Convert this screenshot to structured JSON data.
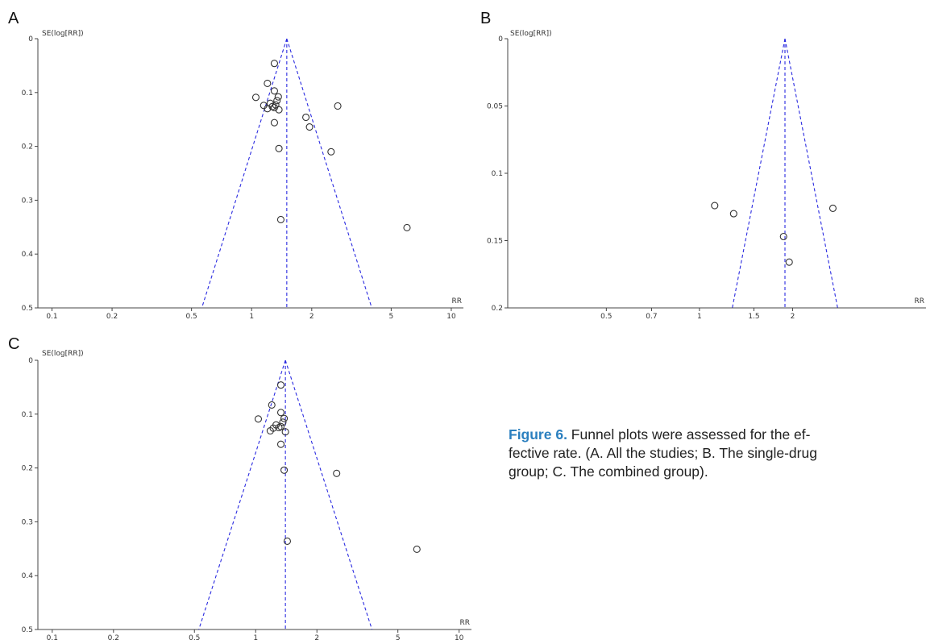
{
  "panels": [
    {
      "letter": "A",
      "chart_data": {
        "type": "scatter",
        "subtype": "funnel-plot",
        "xlabel": "RR",
        "ylabel": "SE(log[RR])",
        "x_scale": "log",
        "xlim": [
          0.085,
          11.5
        ],
        "ylim": [
          0,
          0.5
        ],
        "y_inverted": true,
        "x_ticks": [
          0.1,
          0.2,
          0.5,
          1,
          2,
          5,
          10
        ],
        "x_tick_labels": [
          "0.1",
          "0.2",
          "0.5",
          "1",
          "2",
          "5",
          "10"
        ],
        "y_ticks": [
          0,
          0.1,
          0.2,
          0.3,
          0.4,
          0.5
        ],
        "y_tick_labels": [
          "0",
          "0.1",
          "0.2",
          "0.3",
          "0.4",
          "0.5"
        ],
        "pooled_rr": 1.5,
        "points": [
          {
            "rr": 1.3,
            "se": 0.046
          },
          {
            "rr": 1.2,
            "se": 0.083
          },
          {
            "rr": 1.3,
            "se": 0.097
          },
          {
            "rr": 1.05,
            "se": 0.109
          },
          {
            "rr": 1.36,
            "se": 0.108
          },
          {
            "rr": 1.34,
            "se": 0.115
          },
          {
            "rr": 1.24,
            "se": 0.12
          },
          {
            "rr": 1.32,
            "se": 0.123
          },
          {
            "rr": 1.15,
            "se": 0.124
          },
          {
            "rr": 1.27,
            "se": 0.126
          },
          {
            "rr": 2.7,
            "se": 0.125
          },
          {
            "rr": 1.3,
            "se": 0.128
          },
          {
            "rr": 1.2,
            "se": 0.13
          },
          {
            "rr": 1.37,
            "se": 0.132
          },
          {
            "rr": 1.87,
            "se": 0.146
          },
          {
            "rr": 1.3,
            "se": 0.156
          },
          {
            "rr": 1.95,
            "se": 0.164
          },
          {
            "rr": 1.37,
            "se": 0.204
          },
          {
            "rr": 2.5,
            "se": 0.21
          },
          {
            "rr": 1.4,
            "se": 0.336
          },
          {
            "rr": 6.0,
            "se": 0.351
          }
        ]
      }
    },
    {
      "letter": "B",
      "chart_data": {
        "type": "scatter",
        "subtype": "funnel-plot",
        "xlabel": "RR",
        "ylabel": "SE(log[RR])",
        "x_scale": "log",
        "xlim": [
          0.24,
          5.4
        ],
        "ylim": [
          0,
          0.2
        ],
        "y_inverted": true,
        "x_ticks": [
          0.5,
          0.7,
          1,
          1.5,
          2
        ],
        "x_tick_labels": [
          "0.5",
          "0.7",
          "1",
          "1.5",
          "2"
        ],
        "y_ticks": [
          0,
          0.05,
          0.1,
          0.15,
          0.2
        ],
        "y_tick_labels": [
          "0",
          "0.05",
          "0.1",
          "0.15",
          "0.2"
        ],
        "pooled_rr": 1.89,
        "points": [
          {
            "rr": 1.12,
            "se": 0.124
          },
          {
            "rr": 1.29,
            "se": 0.13
          },
          {
            "rr": 2.7,
            "se": 0.126
          },
          {
            "rr": 1.87,
            "se": 0.147
          },
          {
            "rr": 1.95,
            "se": 0.166
          }
        ]
      }
    },
    {
      "letter": "C",
      "chart_data": {
        "type": "scatter",
        "subtype": "funnel-plot",
        "xlabel": "RR",
        "ylabel": "SE(log[RR])",
        "x_scale": "log",
        "xlim": [
          0.085,
          11.5
        ],
        "ylim": [
          0,
          0.5
        ],
        "y_inverted": true,
        "x_ticks": [
          0.1,
          0.2,
          0.5,
          1,
          2,
          5,
          10
        ],
        "x_tick_labels": [
          "0.1",
          "0.2",
          "0.5",
          "1",
          "2",
          "5",
          "10"
        ],
        "y_ticks": [
          0,
          0.1,
          0.2,
          0.3,
          0.4,
          0.5
        ],
        "y_tick_labels": [
          "0",
          "0.1",
          "0.2",
          "0.3",
          "0.4",
          "0.5"
        ],
        "pooled_rr": 1.4,
        "points": [
          {
            "rr": 1.33,
            "se": 0.046
          },
          {
            "rr": 1.2,
            "se": 0.083
          },
          {
            "rr": 1.33,
            "se": 0.097
          },
          {
            "rr": 1.03,
            "se": 0.109
          },
          {
            "rr": 1.38,
            "se": 0.108
          },
          {
            "rr": 1.36,
            "se": 0.115
          },
          {
            "rr": 1.26,
            "se": 0.12
          },
          {
            "rr": 1.33,
            "se": 0.123
          },
          {
            "rr": 1.22,
            "se": 0.126
          },
          {
            "rr": 1.3,
            "se": 0.125
          },
          {
            "rr": 1.18,
            "se": 0.131
          },
          {
            "rr": 1.4,
            "se": 0.133
          },
          {
            "rr": 1.33,
            "se": 0.156
          },
          {
            "rr": 1.38,
            "se": 0.204
          },
          {
            "rr": 2.5,
            "se": 0.21
          },
          {
            "rr": 1.43,
            "se": 0.336
          },
          {
            "rr": 6.2,
            "se": 0.351
          }
        ]
      }
    }
  ],
  "caption": {
    "label": "Figure 6.",
    "line1_rest": " Funnel plots were assessed for the ef-",
    "line2": "fective rate. (A. All the studies; B. The single-drug",
    "line3": "group; C. The combined group)."
  },
  "colors": {
    "funnel_line": "#2a2ae0",
    "axis": "#444444",
    "point": "#333333",
    "caption_label": "#2a7fbf"
  }
}
